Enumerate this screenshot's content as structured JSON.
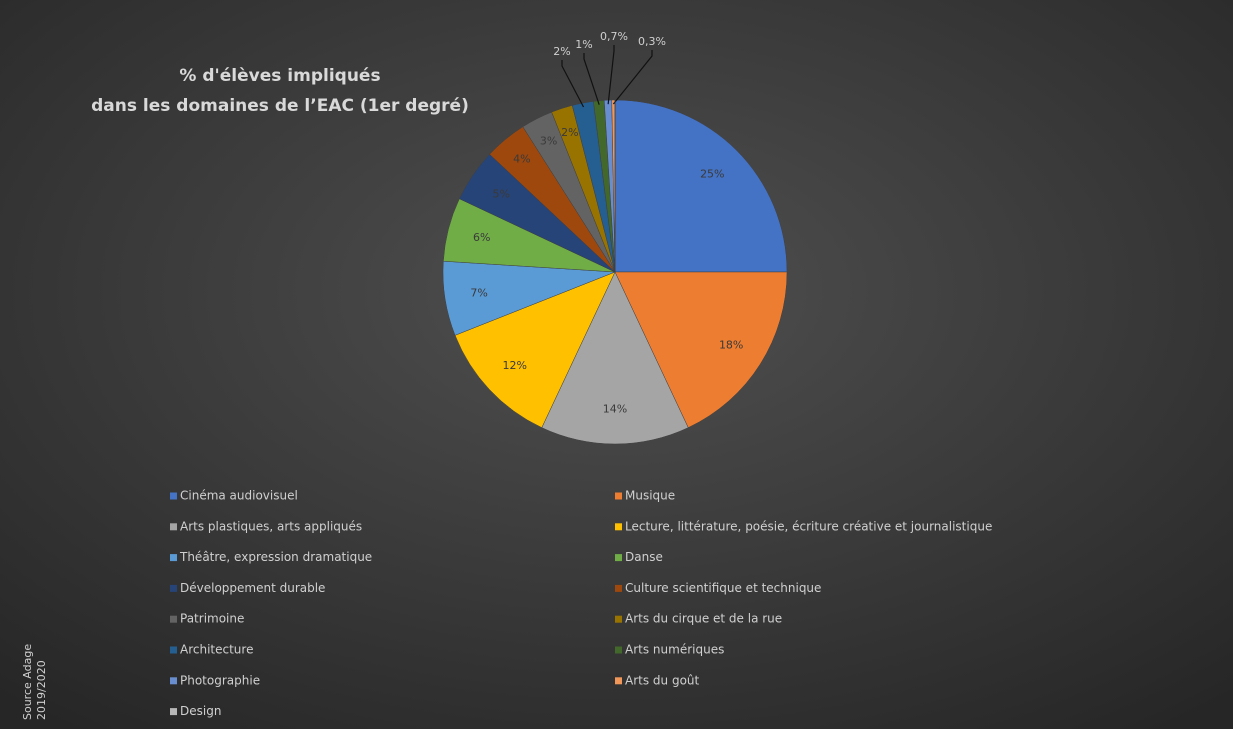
{
  "chart_data": {
    "type": "pie",
    "title": [
      "% d'élèves impliqués",
      "dans les domaines de l’EAC (1er degré)"
    ],
    "source": [
      "Source Adage",
      "2019/2020"
    ],
    "categories": [
      "Cinéma audiovisuel",
      "Musique",
      "Arts plastiques, arts appliqués",
      "Lecture, littérature, poésie, écriture créative et journalistique",
      "Théâtre, expression dramatique",
      "Danse",
      "Développement durable",
      "Culture scientifique et technique",
      "Patrimoine",
      "Arts du cirque et de la rue",
      "Architecture",
      "Arts numériques",
      "Photographie",
      "Arts du goût",
      "Design"
    ],
    "values": [
      25,
      18,
      14,
      12,
      7,
      6,
      5,
      4,
      3,
      2,
      2,
      1,
      0.7,
      0.3,
      0
    ],
    "value_labels": [
      "25%",
      "18%",
      "14%",
      "12%",
      "7%",
      "6%",
      "5%",
      "4%",
      "3%",
      "2%",
      "2%",
      "1%",
      "0,7%",
      "0,3%",
      null
    ],
    "colors": [
      "#4472c4",
      "#ed7d31",
      "#a5a5a5",
      "#ffc000",
      "#5b9bd5",
      "#70ad47",
      "#264478",
      "#9e480e",
      "#636363",
      "#997300",
      "#255e91",
      "#43682b",
      "#698ed0",
      "#f1975a",
      "#b7b7b7"
    ],
    "legend": "bottom"
  }
}
